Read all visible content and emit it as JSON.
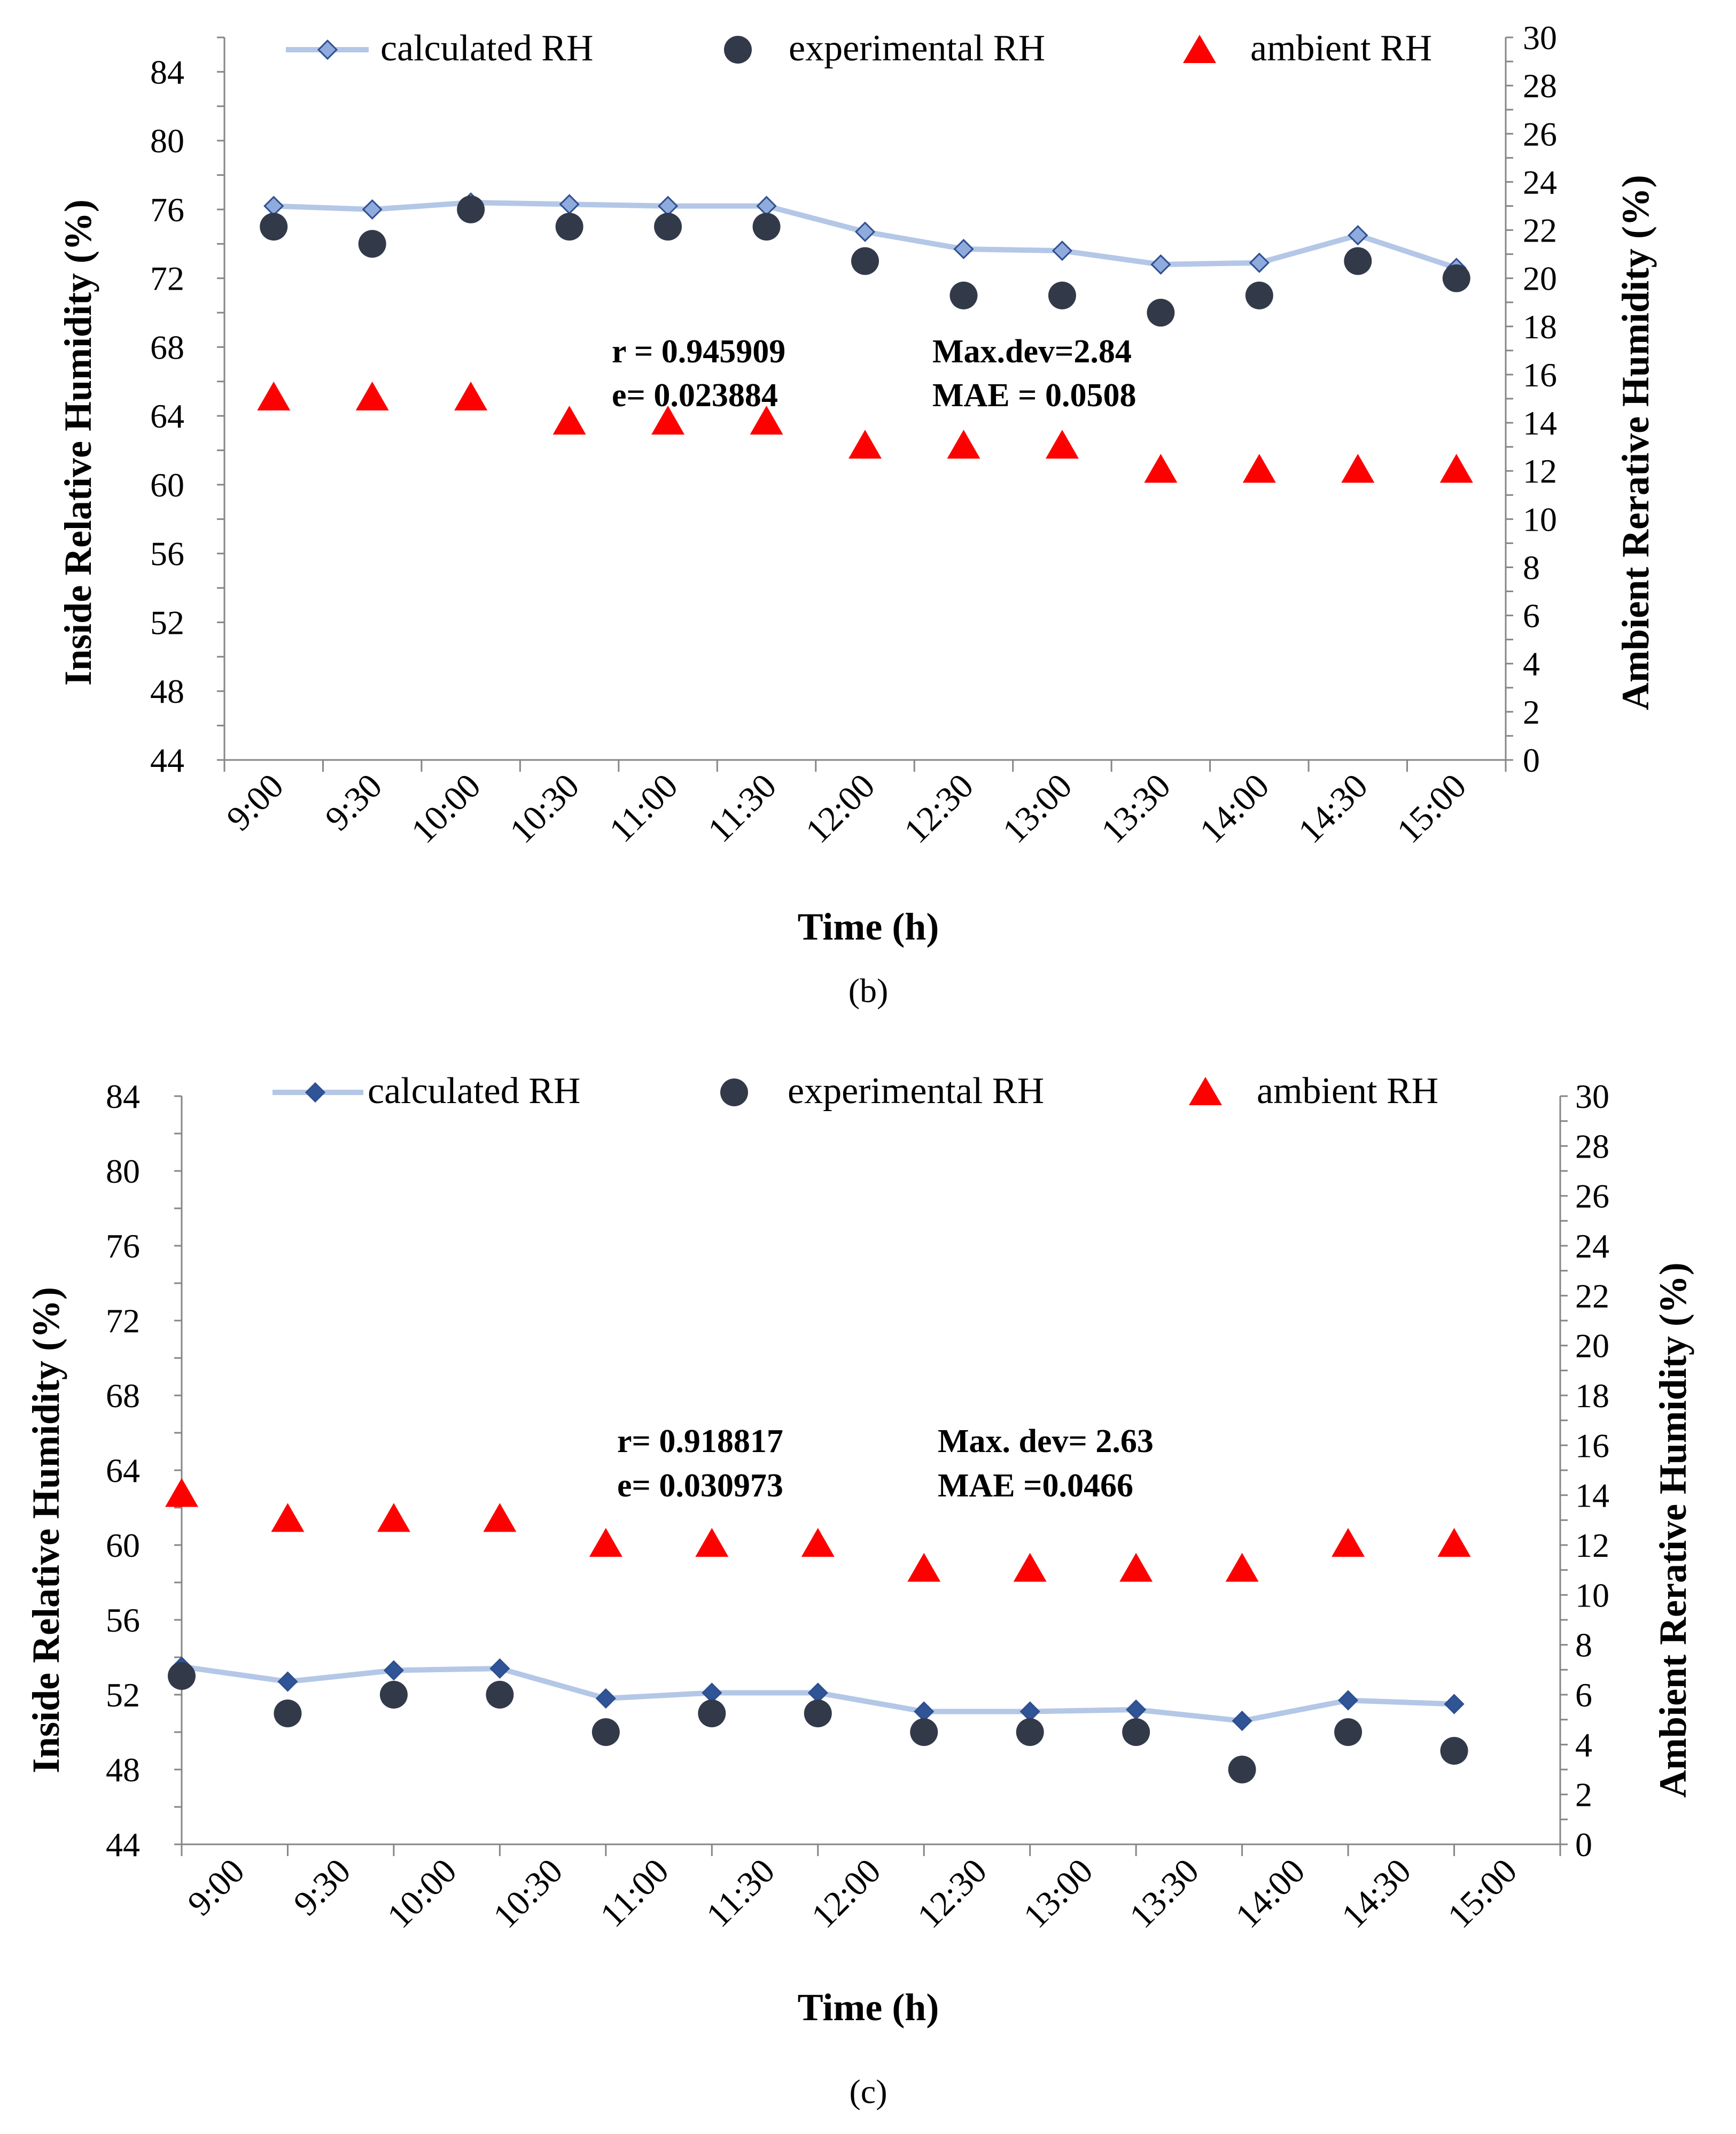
{
  "colors": {
    "calc_line": "#b4c7e7",
    "calc_marker_b_fill": "#8faadc",
    "calc_marker_c_fill": "#2f5597",
    "calc_marker_edge": "#2f4f8f",
    "experimental": "#323a4a",
    "ambient": "#ff0000",
    "axis": "#868686",
    "text": "#000000"
  },
  "chart_data": [
    {
      "type": "line",
      "caption": "(b)",
      "xlabel": "Time (h)",
      "ylabel": "Inside Relative Humidity (%)",
      "y2label": "Ambient Rerative Humidity (%)",
      "ylim": [
        44,
        86
      ],
      "y2lim": [
        0,
        30
      ],
      "yticks": [
        "44",
        "48",
        "52",
        "56",
        "60",
        "64",
        "68",
        "72",
        "76",
        "80",
        "84"
      ],
      "y2ticks": [
        "0",
        "2",
        "4",
        "6",
        "8",
        "10",
        "12",
        "14",
        "16",
        "18",
        "20",
        "22",
        "24",
        "26",
        "28",
        "30"
      ],
      "categories": [
        "9:00",
        "9:30",
        "10:00",
        "10:30",
        "11:00",
        "11:30",
        "12:00",
        "12:30",
        "13:00",
        "13:30",
        "14:00",
        "14:30",
        "15:00"
      ],
      "points_offset": 0.5,
      "series": [
        {
          "name": "calculated RH",
          "axis": "left",
          "values": [
            76.2,
            76.0,
            76.4,
            76.3,
            76.2,
            76.2,
            74.7,
            73.7,
            73.6,
            72.8,
            72.9,
            74.5,
            72.6
          ]
        },
        {
          "name": "experimental RH",
          "axis": "left",
          "values": [
            75,
            74,
            76,
            75,
            75,
            75,
            73,
            71,
            71,
            70,
            71,
            73,
            72
          ]
        },
        {
          "name": "ambient RH",
          "axis": "right",
          "values": [
            15,
            15,
            15,
            14,
            14,
            14,
            13,
            13,
            13,
            12,
            12,
            12,
            12
          ]
        }
      ],
      "annotations": {
        "r": "r = 0.945909",
        "e": "e= 0.023884",
        "maxdev": "Max.dev=2.84",
        "mae": "MAE = 0.0508"
      },
      "legend_position": "top"
    },
    {
      "type": "line",
      "caption": "(c)",
      "xlabel": "Time (h)",
      "ylabel": "Inside Relative Humidity (%)",
      "y2label": "Ambient Rerative Humidity (%)",
      "ylim": [
        44,
        84
      ],
      "y2lim": [
        0,
        30
      ],
      "yticks": [
        "44",
        "48",
        "52",
        "56",
        "60",
        "64",
        "68",
        "72",
        "76",
        "80",
        "84"
      ],
      "y2ticks": [
        "0",
        "2",
        "4",
        "6",
        "8",
        "10",
        "12",
        "14",
        "16",
        "18",
        "20",
        "22",
        "24",
        "26",
        "28",
        "30"
      ],
      "categories": [
        "9:00",
        "9:30",
        "10:00",
        "10:30",
        "11:00",
        "11:30",
        "12:00",
        "12:30",
        "13:00",
        "13:30",
        "14:00",
        "14:30",
        "15:00"
      ],
      "points_offset": 0,
      "series": [
        {
          "name": "calculated RH",
          "axis": "left",
          "values": [
            53.5,
            52.7,
            53.3,
            53.4,
            51.8,
            52.1,
            52.1,
            51.1,
            51.1,
            51.2,
            50.6,
            51.7,
            51.5
          ]
        },
        {
          "name": "experimental RH",
          "axis": "left",
          "values": [
            53,
            51,
            52,
            52,
            50,
            51,
            51,
            50,
            50,
            50,
            48,
            50,
            49
          ]
        },
        {
          "name": "ambient RH",
          "axis": "right",
          "values": [
            14,
            13,
            13,
            13,
            12,
            12,
            12,
            11,
            11,
            11,
            11,
            12,
            12
          ]
        }
      ],
      "annotations": {
        "r": "r= 0.918817",
        "e": "e= 0.030973",
        "maxdev": "Max. dev= 2.63",
        "mae": "MAE =0.0466"
      },
      "legend_position": "top"
    }
  ]
}
